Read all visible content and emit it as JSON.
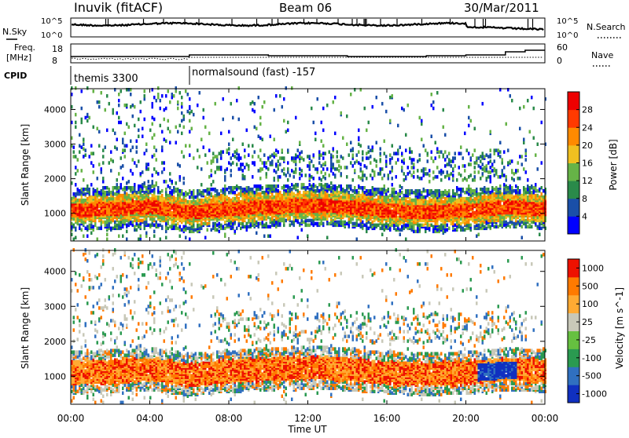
{
  "header": {
    "station": "Inuvik (fitACF)",
    "beam": "Beam 06",
    "date": "30/Mar/2011"
  },
  "noise_panel": {
    "left_label": "N.Sky",
    "right_label": "N.Search",
    "left_ticks": [
      "10^5",
      "10^0"
    ],
    "right_ticks": [
      "10^5",
      "10^0"
    ]
  },
  "freq_panel": {
    "left_label_1": "Freq.",
    "left_label_2": "[MHz]",
    "left_ticks": [
      "18",
      "8"
    ],
    "right_label": "Nave",
    "right_ticks": [
      "60",
      "0"
    ]
  },
  "cpid_panel": {
    "label": "CPID",
    "segments": [
      {
        "name": "themis 3300",
        "start_hour": 0,
        "end_hour": 6
      },
      {
        "name": "normalsound (fast) -157",
        "start_hour": 6,
        "end_hour": 24
      }
    ]
  },
  "chart_data": [
    {
      "type": "heatmap",
      "title": "Power",
      "xlabel": "",
      "ylabel": "Slant Range [km]",
      "xlim": [
        0,
        24
      ],
      "ylim": [
        200,
        4600
      ],
      "y_ticks": [
        1000,
        2000,
        3000,
        4000
      ],
      "colorbar": {
        "label": "Power [dB]",
        "ticks": [
          4,
          8,
          12,
          16,
          20,
          24,
          28
        ],
        "colors": [
          "#0000ff",
          "#1a4fa8",
          "#2a8a4a",
          "#66b347",
          "#f0c020",
          "#ff8a00",
          "#ff3a00",
          "#ee0000"
        ]
      },
      "main_echo_band_km": [
        [
          0,
          1050
        ],
        [
          2,
          1100
        ],
        [
          4,
          1150
        ],
        [
          6,
          1000
        ],
        [
          8,
          1100
        ],
        [
          10,
          1150
        ],
        [
          12,
          1200
        ],
        [
          14,
          1150
        ],
        [
          16,
          1050
        ],
        [
          18,
          1000
        ],
        [
          20,
          1050
        ],
        [
          22,
          1150
        ],
        [
          24,
          1100
        ]
      ]
    },
    {
      "type": "heatmap",
      "title": "Velocity",
      "xlabel": "Time UT",
      "ylabel": "Slant Range [km]",
      "xlim": [
        0,
        24
      ],
      "ylim": [
        200,
        4600
      ],
      "y_ticks": [
        1000,
        2000,
        3000,
        4000
      ],
      "colorbar": {
        "label": "Velocity [m s^-1]",
        "ticks": [
          "1000",
          "500",
          "100",
          "25",
          "-25",
          "-100",
          "-500",
          "-1000"
        ],
        "colors": [
          "#1030c0",
          "#3070c0",
          "#2a9a50",
          "#66c040",
          "#c8c8b8",
          "#ffaa33",
          "#ff7a00",
          "#ee1100"
        ]
      }
    }
  ],
  "x_axis": {
    "tick_labels": [
      "00:00",
      "04:00",
      "08:00",
      "12:00",
      "16:00",
      "20:00",
      "00:00"
    ],
    "label": "Time UT"
  }
}
